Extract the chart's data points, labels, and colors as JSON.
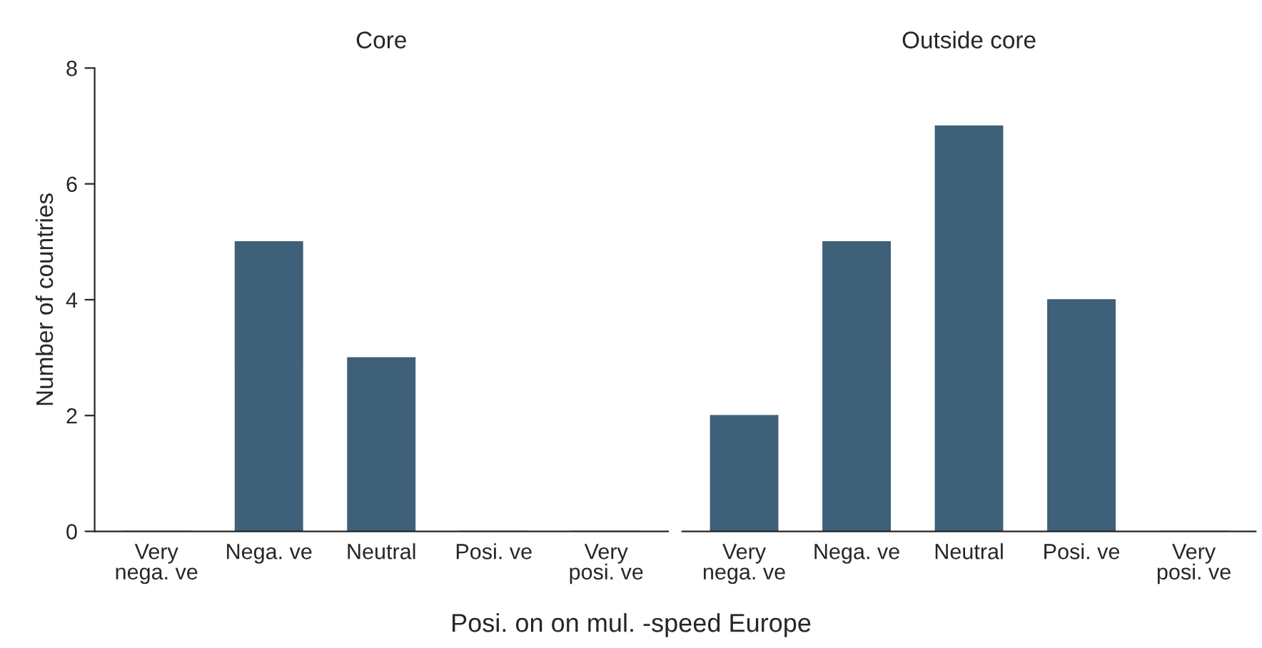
{
  "chart_data": [
    {
      "type": "bar",
      "title": "Core",
      "ylabel": "Number of countries",
      "xlabel": "Posi. on on mul. -speed Europe",
      "categories": [
        "Very\nnega. ve",
        "Nega. ve",
        "Neutral",
        "Posi. ve",
        "Very\nposi. ve"
      ],
      "values": [
        0,
        5,
        3,
        0,
        0
      ],
      "color": "#3e6079",
      "ylim": [
        0,
        8
      ],
      "yticks": [
        0,
        2,
        4,
        6,
        8
      ],
      "grid": false,
      "legend": false
    },
    {
      "type": "bar",
      "title": "Outside core",
      "categories": [
        "Very\nnega. ve",
        "Nega. ve",
        "Neutral",
        "Posi. ve",
        "Very\nposi. ve"
      ],
      "values": [
        2,
        5,
        7,
        4,
        0
      ],
      "color": "#3e6079",
      "ylim": [
        0,
        8
      ],
      "yticks": [
        0,
        2,
        4,
        6,
        8
      ],
      "tick_labels": "x",
      "grid": false,
      "legend": false
    }
  ]
}
